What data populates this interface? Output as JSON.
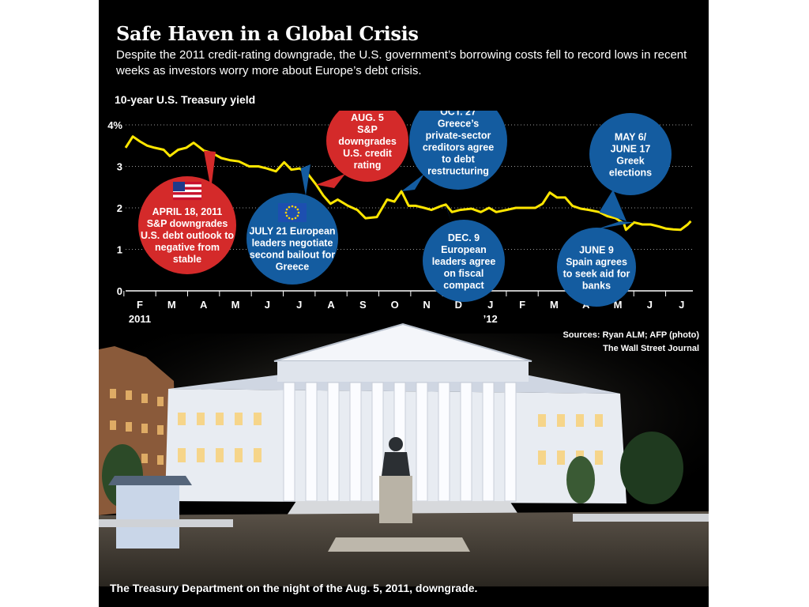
{
  "header": {
    "title": "Safe Haven in a Global Crisis",
    "subtitle": "Despite the 2011 credit-rating downgrade, the U.S. government’s borrowing costs fell to record lows in recent weeks as investors worry more about Europe’s debt crisis."
  },
  "chart_data": {
    "type": "line",
    "ylabel": "10-year U.S. Treasury yield",
    "y_unit": "%",
    "y_ticks": [
      "4%",
      "3",
      "2",
      "1",
      "0"
    ],
    "ylim": [
      0,
      4
    ],
    "x_ticks": [
      "F",
      "M",
      "A",
      "M",
      "J",
      "J",
      "A",
      "S",
      "O",
      "N",
      "D",
      "J",
      "F",
      "M",
      "A",
      "M",
      "J",
      "J"
    ],
    "x_year_labels": [
      {
        "text": "2011",
        "at_tick": 0
      },
      {
        "text": "’12",
        "at_tick": 11
      }
    ],
    "grid": "horizontal dotted",
    "series": [
      {
        "color": "#ffe600",
        "points": [
          {
            "x": "2011-02-01",
            "y": 3.45
          },
          {
            "x": "2011-02-08",
            "y": 3.72
          },
          {
            "x": "2011-02-15",
            "y": 3.6
          },
          {
            "x": "2011-02-22",
            "y": 3.5
          },
          {
            "x": "2011-03-01",
            "y": 3.45
          },
          {
            "x": "2011-03-10",
            "y": 3.4
          },
          {
            "x": "2011-03-16",
            "y": 3.25
          },
          {
            "x": "2011-03-24",
            "y": 3.4
          },
          {
            "x": "2011-04-01",
            "y": 3.45
          },
          {
            "x": "2011-04-08",
            "y": 3.57
          },
          {
            "x": "2011-04-18",
            "y": 3.38
          },
          {
            "x": "2011-04-26",
            "y": 3.32
          },
          {
            "x": "2011-05-05",
            "y": 3.2
          },
          {
            "x": "2011-05-13",
            "y": 3.15
          },
          {
            "x": "2011-05-22",
            "y": 3.12
          },
          {
            "x": "2011-06-01",
            "y": 3.0
          },
          {
            "x": "2011-06-10",
            "y": 3.0
          },
          {
            "x": "2011-06-18",
            "y": 2.95
          },
          {
            "x": "2011-06-27",
            "y": 2.88
          },
          {
            "x": "2011-07-05",
            "y": 3.1
          },
          {
            "x": "2011-07-12",
            "y": 2.92
          },
          {
            "x": "2011-07-20",
            "y": 2.95
          },
          {
            "x": "2011-07-28",
            "y": 2.82
          },
          {
            "x": "2011-08-05",
            "y": 2.56
          },
          {
            "x": "2011-08-12",
            "y": 2.3
          },
          {
            "x": "2011-08-19",
            "y": 2.1
          },
          {
            "x": "2011-08-26",
            "y": 2.2
          },
          {
            "x": "2011-09-05",
            "y": 2.05
          },
          {
            "x": "2011-09-14",
            "y": 1.95
          },
          {
            "x": "2011-09-22",
            "y": 1.75
          },
          {
            "x": "2011-10-03",
            "y": 1.78
          },
          {
            "x": "2011-10-13",
            "y": 2.2
          },
          {
            "x": "2011-10-20",
            "y": 2.15
          },
          {
            "x": "2011-10-27",
            "y": 2.4
          },
          {
            "x": "2011-11-03",
            "y": 2.05
          },
          {
            "x": "2011-11-10",
            "y": 2.05
          },
          {
            "x": "2011-11-18",
            "y": 2.0
          },
          {
            "x": "2011-11-25",
            "y": 1.95
          },
          {
            "x": "2011-12-05",
            "y": 2.05
          },
          {
            "x": "2011-12-09",
            "y": 2.08
          },
          {
            "x": "2011-12-15",
            "y": 1.9
          },
          {
            "x": "2011-12-23",
            "y": 1.95
          },
          {
            "x": "2012-01-03",
            "y": 1.98
          },
          {
            "x": "2012-01-12",
            "y": 1.9
          },
          {
            "x": "2012-01-20",
            "y": 2.0
          },
          {
            "x": "2012-01-27",
            "y": 1.9
          },
          {
            "x": "2012-02-06",
            "y": 1.95
          },
          {
            "x": "2012-02-15",
            "y": 2.0
          },
          {
            "x": "2012-02-23",
            "y": 2.0
          },
          {
            "x": "2012-03-05",
            "y": 2.0
          },
          {
            "x": "2012-03-12",
            "y": 2.1
          },
          {
            "x": "2012-03-19",
            "y": 2.37
          },
          {
            "x": "2012-03-26",
            "y": 2.25
          },
          {
            "x": "2012-04-03",
            "y": 2.25
          },
          {
            "x": "2012-04-10",
            "y": 2.05
          },
          {
            "x": "2012-04-18",
            "y": 1.98
          },
          {
            "x": "2012-04-26",
            "y": 1.95
          },
          {
            "x": "2012-05-06",
            "y": 1.9
          },
          {
            "x": "2012-05-14",
            "y": 1.8
          },
          {
            "x": "2012-05-22",
            "y": 1.75
          },
          {
            "x": "2012-05-30",
            "y": 1.62
          },
          {
            "x": "2012-06-01",
            "y": 1.47
          },
          {
            "x": "2012-06-09",
            "y": 1.65
          },
          {
            "x": "2012-06-17",
            "y": 1.6
          },
          {
            "x": "2012-06-25",
            "y": 1.6
          },
          {
            "x": "2012-07-03",
            "y": 1.55
          },
          {
            "x": "2012-07-10",
            "y": 1.5
          },
          {
            "x": "2012-07-17",
            "y": 1.48
          },
          {
            "x": "2012-07-24",
            "y": 1.47
          },
          {
            "x": "2012-07-31",
            "y": 1.6
          },
          {
            "x": "2012-08-03",
            "y": 1.68
          }
        ]
      }
    ],
    "annotations": [
      {
        "lines": [
          "APRIL 18, 2011",
          "S&P downgrades",
          "U.S. debt outlook to",
          "negative from",
          "stable"
        ],
        "date": "2011-04-18",
        "color": "#d42a2a",
        "flag": "us-flag-icon"
      },
      {
        "lines": [
          "JULY 21  European",
          "leaders negotiate",
          "second bailout for",
          "Greece"
        ],
        "date": "2011-07-21",
        "color": "#145ca0",
        "flag": "eu-flag-icon"
      },
      {
        "lines": [
          "AUG. 5",
          "S&P",
          "downgrades",
          "U.S. credit",
          "rating"
        ],
        "date": "2011-08-05",
        "color": "#d42a2a"
      },
      {
        "lines": [
          "OCT. 27",
          "Greece’s",
          "private-sector",
          "creditors agree",
          "to debt",
          "restructuring"
        ],
        "date": "2011-10-27",
        "color": "#145ca0"
      },
      {
        "lines": [
          "DEC. 9",
          "European",
          "leaders agree",
          "on fiscal",
          "compact"
        ],
        "date": "2011-12-09",
        "color": "#145ca0"
      },
      {
        "lines": [
          "MAY 6/",
          "JUNE 17",
          "Greek",
          "elections"
        ],
        "date": "2012-05-06",
        "color": "#145ca0"
      },
      {
        "lines": [
          "JUNE 9",
          "Spain agrees",
          "to seek aid for",
          "banks"
        ],
        "date": "2012-06-09",
        "color": "#145ca0"
      }
    ]
  },
  "sources": {
    "line1": "Sources: Ryan ALM; AFP (photo)",
    "line2": "The  Wall Street Journal"
  },
  "photo": {
    "caption": "The Treasury Department on the night of the Aug. 5, 2011, downgrade."
  }
}
